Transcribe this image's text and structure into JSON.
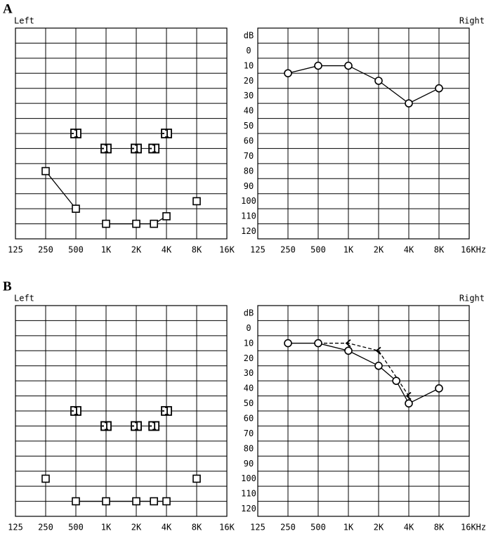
{
  "chart_data": [
    {
      "type": "line",
      "panel": "A",
      "title": "Left",
      "title_align": "left",
      "xscale": "log",
      "xlim": [
        125,
        16000
      ],
      "xticks": [
        125,
        250,
        500,
        {
          "value": 1000,
          "label": "1K"
        },
        {
          "value": 2000,
          "label": "2K"
        },
        {
          "value": 4000,
          "label": "4K"
        },
        {
          "value": 8000,
          "label": "8K"
        },
        {
          "value": 16000,
          "label": "16K"
        }
      ],
      "ylim": [
        -10,
        130
      ],
      "y_inverted": true,
      "yticks": [
        -10,
        0,
        10,
        20,
        30,
        40,
        50,
        60,
        70,
        80,
        90,
        100,
        110,
        120
      ],
      "show_ytick_labels": false,
      "grid": true,
      "series": [
        {
          "marker": "square",
          "color": "#000000",
          "x": [
            250,
            500
          ],
          "values": [
            85,
            110
          ]
        },
        {
          "marker": "square",
          "color": "#000000",
          "x": [
            1000,
            2000,
            3000,
            4000
          ],
          "values": [
            120,
            120,
            120,
            115
          ]
        },
        {
          "marker": "square",
          "color": "#000000",
          "x": [
            8000
          ],
          "values": [
            105
          ]
        },
        {
          "marker": "bracket",
          "color": "#000000",
          "line": false,
          "x": [
            500,
            1000,
            2000,
            3000,
            4000
          ],
          "values": [
            60,
            70,
            70,
            70,
            60
          ]
        }
      ]
    },
    {
      "type": "line",
      "title": "Right",
      "title_align": "right",
      "xscale": "log",
      "xlim": [
        125,
        16000
      ],
      "xticks": [
        125,
        250,
        500,
        {
          "value": 1000,
          "label": "1K"
        },
        {
          "value": 2000,
          "label": "2K"
        },
        {
          "value": 4000,
          "label": "4K"
        },
        {
          "value": 8000,
          "label": "8K"
        },
        {
          "value": 16000,
          "label": "16KHz"
        }
      ],
      "ylim": [
        -10,
        130
      ],
      "y_inverted": true,
      "yticks": [
        {
          "value": -10,
          "label": "dB"
        },
        0,
        10,
        20,
        30,
        40,
        50,
        60,
        70,
        80,
        90,
        100,
        110,
        120
      ],
      "show_ytick_labels": true,
      "grid": true,
      "series": [
        {
          "marker": "circle",
          "color": "#000000",
          "x": [
            250,
            500,
            1000,
            2000,
            4000,
            8000
          ],
          "values": [
            20,
            15,
            15,
            25,
            40,
            30
          ]
        }
      ]
    },
    {
      "type": "line",
      "panel": "B",
      "title": "Left",
      "title_align": "left",
      "xscale": "log",
      "xlim": [
        125,
        16000
      ],
      "xticks": [
        125,
        250,
        500,
        {
          "value": 1000,
          "label": "1K"
        },
        {
          "value": 2000,
          "label": "2K"
        },
        {
          "value": 4000,
          "label": "4K"
        },
        {
          "value": 8000,
          "label": "8K"
        },
        {
          "value": 16000,
          "label": "16K"
        }
      ],
      "ylim": [
        -10,
        130
      ],
      "y_inverted": true,
      "yticks": [
        -10,
        0,
        10,
        20,
        30,
        40,
        50,
        60,
        70,
        80,
        90,
        100,
        110,
        120
      ],
      "show_ytick_labels": false,
      "grid": true,
      "series": [
        {
          "marker": "square",
          "color": "#000000",
          "x": [
            250
          ],
          "values": [
            105
          ]
        },
        {
          "marker": "square",
          "color": "#000000",
          "x": [
            500,
            1000,
            2000,
            3000,
            4000
          ],
          "values": [
            120,
            120,
            120,
            120,
            120
          ]
        },
        {
          "marker": "square",
          "color": "#000000",
          "x": [
            8000
          ],
          "values": [
            105
          ]
        },
        {
          "marker": "bracket",
          "color": "#000000",
          "line": false,
          "x": [
            500,
            1000,
            2000,
            3000,
            4000
          ],
          "values": [
            60,
            70,
            70,
            70,
            60
          ]
        }
      ]
    },
    {
      "type": "line",
      "title": "Right",
      "title_align": "right",
      "xscale": "log",
      "xlim": [
        125,
        16000
      ],
      "xticks": [
        125,
        250,
        500,
        {
          "value": 1000,
          "label": "1K"
        },
        {
          "value": 2000,
          "label": "2K"
        },
        {
          "value": 4000,
          "label": "4K"
        },
        {
          "value": 8000,
          "label": "8K"
        },
        {
          "value": 16000,
          "label": "16KHz"
        }
      ],
      "ylim": [
        -10,
        130
      ],
      "y_inverted": true,
      "yticks": [
        {
          "value": -10,
          "label": "dB"
        },
        0,
        10,
        20,
        30,
        40,
        50,
        60,
        70,
        80,
        90,
        100,
        110,
        120
      ],
      "show_ytick_labels": true,
      "grid": true,
      "series": [
        {
          "marker": "angle",
          "color": "#000000",
          "dash": true,
          "x": [
            500,
            1000,
            2000,
            4000
          ],
          "values": [
            15,
            15,
            20,
            50
          ]
        },
        {
          "marker": "circle",
          "color": "#000000",
          "x": [
            250,
            500,
            1000,
            2000,
            3000,
            4000,
            8000
          ],
          "values": [
            15,
            15,
            20,
            30,
            40,
            55,
            45
          ]
        }
      ]
    }
  ]
}
